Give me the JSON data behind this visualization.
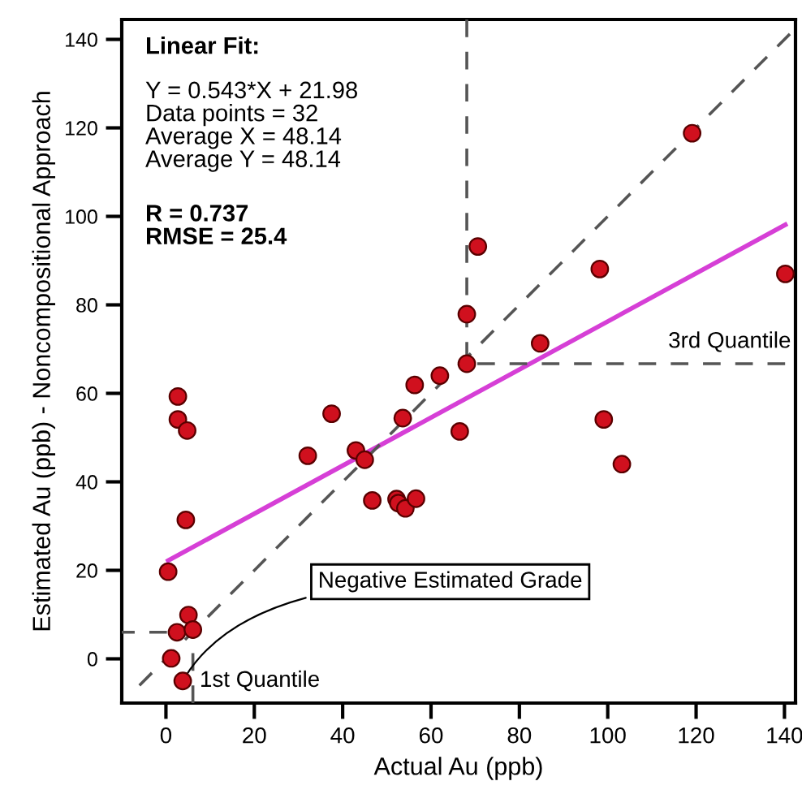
{
  "chart_data": {
    "type": "scatter",
    "xlabel": "Actual Au (ppb)",
    "ylabel": "Estimated Au (ppb) - Noncompositional Approach",
    "xlim": [
      -10,
      142.5
    ],
    "ylim": [
      -10,
      144.5
    ],
    "xticks": [
      0,
      20,
      40,
      60,
      80,
      100,
      120,
      140
    ],
    "yticks": [
      0,
      20,
      40,
      60,
      80,
      100,
      120,
      140
    ],
    "grid": false,
    "marker": "circle",
    "series": [
      {
        "color": "#d0101e",
        "x": [
          2.7,
          2.7,
          4.8,
          4.5,
          0.5,
          5.1,
          2.5,
          6.1,
          1.2,
          3.8,
          32.1,
          37.5,
          43.0,
          45.0,
          46.7,
          52.2,
          52.6,
          54.2,
          56.6,
          53.6,
          56.3,
          62.0,
          119.1,
          70.6,
          98.2,
          140.2,
          68.1,
          84.7,
          68.1,
          66.5,
          99.1,
          103.2
        ],
        "values": [
          59.3,
          54.1,
          51.6,
          31.4,
          19.7,
          9.9,
          6.0,
          6.6,
          0.1,
          -5.0,
          45.9,
          55.4,
          47.1,
          45.0,
          35.8,
          36.1,
          35.2,
          34.0,
          36.2,
          54.4,
          61.9,
          64.0,
          118.8,
          93.2,
          88.1,
          87.0,
          77.9,
          71.3,
          66.7,
          51.4,
          54.1,
          44.0
        ]
      },
      {
        "type": "line",
        "color": "#d63fd6",
        "line_style": "solid",
        "marker": "none",
        "x": [
          0.5,
          140.2
        ],
        "values": [
          22.2,
          98.1
        ]
      },
      {
        "type": "line",
        "color": "#555555",
        "line_style": "dashed",
        "marker": "none",
        "x": [
          -6,
          142.5
        ],
        "values": [
          -6,
          142.5
        ]
      },
      {
        "type": "line",
        "color": "#555555",
        "line_style": "dashed",
        "marker": "none",
        "x": [
          6.1,
          6.1,
          -10
        ],
        "values": [
          -10,
          6.0,
          6.0
        ]
      },
      {
        "type": "line",
        "color": "#555555",
        "line_style": "dashed",
        "marker": "none",
        "x": [
          68.1,
          68.1,
          142.5
        ],
        "values": [
          144.5,
          66.7,
          66.7
        ]
      }
    ],
    "annotations": [
      "Linear Fit:",
      "Y = 0.543*X + 21.98\nData points = 32\nAverage X = 48.14\nAverage Y = 48.14",
      "R = 0.737\nRMSE = 25.4",
      {
        "text": "Negative Estimated Grade",
        "x": 3.8,
        "y": -5.0
      },
      {
        "text": "1st Quantile",
        "x": 6.1,
        "y": -5.0
      },
      {
        "text": "3rd Quantile",
        "x": 142.5,
        "y": 66.7
      }
    ]
  }
}
